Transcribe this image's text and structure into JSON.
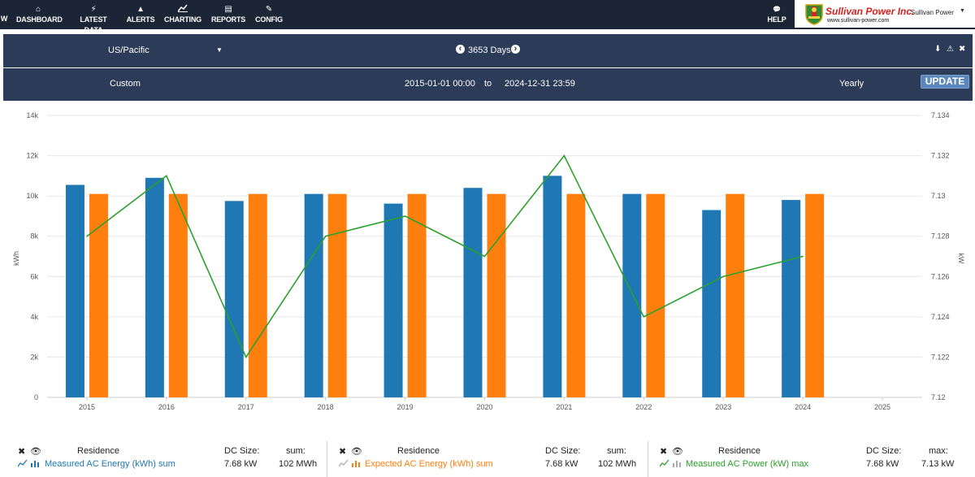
{
  "nav": {
    "partial_label": "W",
    "items": [
      {
        "label": "DASHBOARD",
        "icon": "home-icon",
        "glyph": "⌂"
      },
      {
        "label": "LATEST DATA",
        "icon": "lightning-icon",
        "glyph": "⚡"
      },
      {
        "label": "ALERTS",
        "icon": "warning-icon",
        "glyph": "▲"
      },
      {
        "label": "CHARTING",
        "icon": "chart-icon",
        "glyph": "📈"
      },
      {
        "label": "REPORTS",
        "icon": "document-icon",
        "glyph": "▤"
      },
      {
        "label": "CONFIG",
        "icon": "edit-icon",
        "glyph": "✎"
      }
    ],
    "help_label": "HELP",
    "help_glyph": "💬",
    "brand_title": "Sullivan Power Inc.",
    "brand_url": "www.sullivan-power.com",
    "user_name": "Sullivan Power",
    "user_caret": "▼"
  },
  "controls": {
    "timezone": "US/Pacific",
    "timezone_caret": "▼",
    "range_label": "3653 Days",
    "prev_glyph": "‹",
    "next_glyph": "›",
    "mode": "Custom",
    "start": "2015-01-01 00:00",
    "to_label": "to",
    "end": "2024-12-31 23:59",
    "interval": "Yearly",
    "update_label": "UPDATE",
    "action_glyphs": [
      "⬇",
      "⚠",
      "✖"
    ]
  },
  "chart_data": {
    "type": "bar",
    "categories": [
      "2015",
      "2016",
      "2017",
      "2018",
      "2019",
      "2020",
      "2021",
      "2022",
      "2023",
      "2024",
      "2025"
    ],
    "ylabel_left": "kWh",
    "ylabel_right": "kW",
    "ylim_left": [
      0,
      14000
    ],
    "ylim_right": [
      7.12,
      7.134
    ],
    "yticks_left": [
      "0",
      "2k",
      "4k",
      "6k",
      "8k",
      "10k",
      "12k",
      "14k"
    ],
    "yticks_right": [
      "7.12",
      "7.122",
      "7.124",
      "7.126",
      "7.128",
      "7.13",
      "7.132",
      "7.134"
    ],
    "series": [
      {
        "name": "Measured AC Energy (kWh) sum",
        "type": "bar",
        "axis": "left",
        "color": "#1f77b4",
        "values": [
          10550,
          10900,
          9750,
          10100,
          9620,
          10400,
          11000,
          10100,
          9300,
          9800,
          null
        ]
      },
      {
        "name": "Expected AC Energy (kWh) sum",
        "type": "bar",
        "axis": "left",
        "color": "#ff7f0e",
        "values": [
          10100,
          10100,
          10100,
          10100,
          10100,
          10100,
          10100,
          10100,
          10100,
          10100,
          null
        ]
      },
      {
        "name": "Measured AC Power (kW) max",
        "type": "line",
        "axis": "right",
        "color": "#2ca02c",
        "values": [
          7.128,
          7.131,
          7.122,
          7.128,
          7.129,
          7.127,
          7.132,
          7.124,
          7.126,
          7.127,
          null
        ]
      }
    ]
  },
  "legend": [
    {
      "site": "Residence",
      "series": "Measured AC Energy (kWh) sum",
      "color": "#1f77b4",
      "dc_label": "DC Size:",
      "dc_value": "7.68 kW",
      "agg_label": "sum:",
      "agg_value": "102 MWh"
    },
    {
      "site": "Residence",
      "series": "Expected AC Energy (kWh) sum",
      "color": "#ff7f0e",
      "dc_label": "DC Size:",
      "dc_value": "7.68 kW",
      "agg_label": "sum:",
      "agg_value": "102 MWh"
    },
    {
      "site": "Residence",
      "series": "Measured AC Power (kW) max",
      "color": "#2ca02c",
      "dc_label": "DC Size:",
      "dc_value": "7.68 kW",
      "agg_label": "max:",
      "agg_value": "7.13 kW"
    }
  ]
}
